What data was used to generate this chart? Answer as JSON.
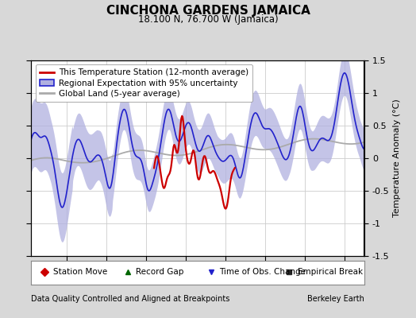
{
  "title": "CINCHONA GARDENS JAMAICA",
  "subtitle": "18.100 N, 76.700 W (Jamaica)",
  "xlabel_left": "Data Quality Controlled and Aligned at Breakpoints",
  "xlabel_right": "Berkeley Earth",
  "ylabel": "Temperature Anomaly (°C)",
  "ylim": [
    -1.5,
    1.5
  ],
  "xlim": [
    1945.5,
    1987.5
  ],
  "xticks": [
    1950,
    1955,
    1960,
    1965,
    1970,
    1975,
    1980,
    1985
  ],
  "yticks": [
    -1.5,
    -1.0,
    -0.5,
    0.0,
    0.5,
    1.0,
    1.5
  ],
  "yticklabels": [
    "-1.5",
    "-1",
    "-0.5",
    "0",
    "0.5",
    "1",
    "1.5"
  ],
  "bg_color": "#d8d8d8",
  "plot_bg_color": "#ffffff",
  "red_color": "#cc0000",
  "blue_color": "#2222cc",
  "blue_fill_color": "#b0b0e0",
  "gray_color": "#aaaaaa",
  "title_fontsize": 11,
  "subtitle_fontsize": 8.5,
  "legend_fontsize": 7.5,
  "tick_fontsize": 8,
  "footer_fontsize": 7
}
